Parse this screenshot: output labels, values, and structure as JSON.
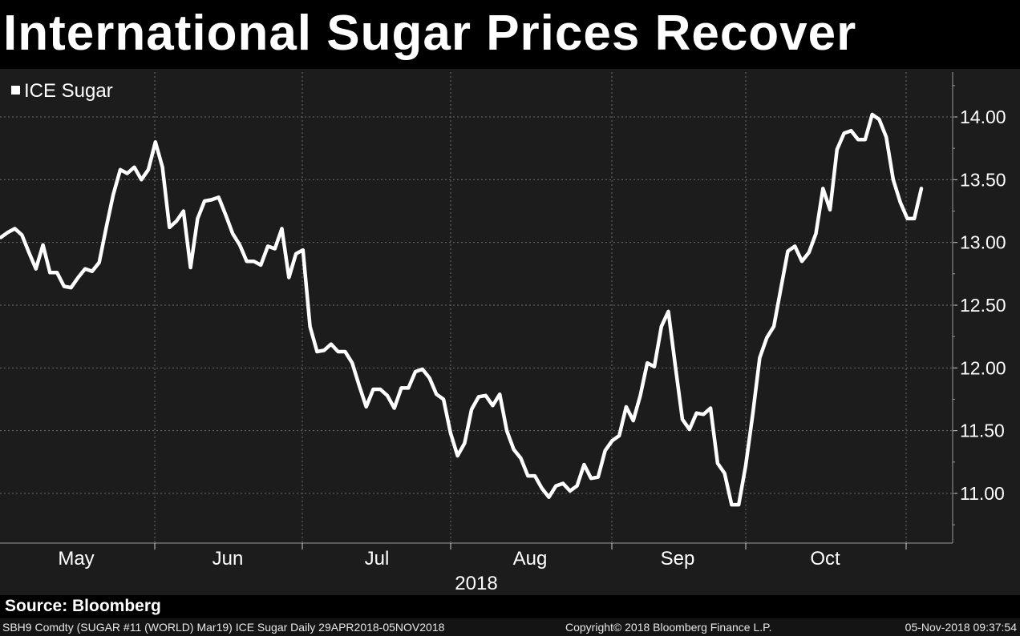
{
  "title": "International Sugar Prices Recover",
  "source": "Source: Bloomberg",
  "footer": {
    "left": "SBH9 Comdty (SUGAR #11 (WORLD) Mar19) ICE Sugar  Daily 29APR2018-05NOV2018",
    "middle": "Copyright© 2018 Bloomberg Finance L.P.",
    "right": "05-Nov-2018 09:37:54"
  },
  "colors": {
    "line": "#ffffff",
    "plot_bg": "#1c1c1c",
    "page_bg": "#000000",
    "grid": "#6a6a6a"
  },
  "chart_data": {
    "type": "line",
    "title": "International Sugar Prices Recover",
    "legend": [
      "ICE Sugar"
    ],
    "legend_position": "top-left",
    "x_year_label": "2018",
    "x_tick_labels": [
      "May",
      "Jun",
      "Jul",
      "Aug",
      "Sep",
      "Oct"
    ],
    "y_tick_labels": [
      "14.00",
      "13.50",
      "13.00",
      "12.50",
      "12.00",
      "11.50",
      "11.00"
    ],
    "y_ticks": [
      14.0,
      13.5,
      13.0,
      12.5,
      12.0,
      11.5,
      11.0
    ],
    "ylim": [
      10.6,
      14.4
    ],
    "series": [
      {
        "name": "ICE Sugar",
        "values": [
          13.04,
          13.08,
          13.11,
          13.06,
          12.92,
          12.79,
          12.98,
          12.76,
          12.76,
          12.65,
          12.64,
          12.72,
          12.79,
          12.77,
          12.84,
          13.12,
          13.38,
          13.58,
          13.55,
          13.6,
          13.5,
          13.58,
          13.8,
          13.6,
          13.12,
          13.17,
          13.25,
          12.8,
          13.19,
          13.33,
          13.34,
          13.36,
          13.22,
          13.07,
          12.98,
          12.85,
          12.85,
          12.82,
          12.97,
          12.95,
          13.11,
          12.72,
          12.91,
          12.94,
          12.33,
          12.13,
          12.14,
          12.19,
          12.13,
          12.13,
          12.04,
          11.86,
          11.69,
          11.83,
          11.83,
          11.78,
          11.68,
          11.84,
          11.84,
          11.97,
          11.99,
          11.92,
          11.79,
          11.75,
          11.48,
          11.3,
          11.4,
          11.67,
          11.77,
          11.78,
          11.7,
          11.79,
          11.5,
          11.35,
          11.28,
          11.14,
          11.14,
          11.04,
          10.97,
          11.06,
          11.08,
          11.02,
          11.06,
          11.23,
          11.12,
          11.13,
          11.34,
          11.42,
          11.46,
          11.69,
          11.58,
          11.78,
          12.04,
          12.01,
          12.33,
          12.45,
          12.01,
          11.59,
          11.51,
          11.64,
          11.63,
          11.68,
          11.24,
          11.16,
          10.91,
          10.91,
          11.22,
          11.63,
          12.08,
          12.24,
          12.33,
          12.63,
          12.93,
          12.97,
          12.85,
          12.92,
          13.07,
          13.43,
          13.26,
          13.74,
          13.87,
          13.89,
          13.82,
          13.82,
          14.02,
          13.98,
          13.84,
          13.5,
          13.32,
          13.19,
          13.19,
          13.43
        ]
      }
    ]
  }
}
